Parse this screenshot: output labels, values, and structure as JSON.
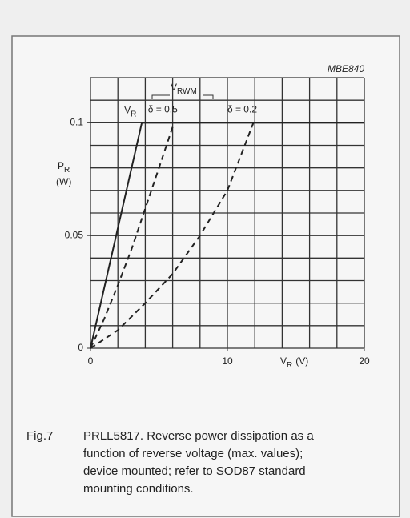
{
  "chart_data": {
    "type": "line",
    "code": "MBE840",
    "ylabel": {
      "text": "P",
      "sub": "R",
      "unit": "(W)"
    },
    "xlabel": {
      "text": "V",
      "sub": "R",
      "unit": "(V)"
    },
    "group_label": {
      "text": "V",
      "sub": "RWM"
    },
    "xlim": [
      0,
      20
    ],
    "xticks": [
      0,
      10,
      20
    ],
    "ylim": [
      0,
      0.12
    ],
    "yticks": [
      0,
      0.05,
      0.1
    ],
    "xgrid": [
      0,
      2,
      4,
      6,
      8,
      10,
      12,
      14,
      16,
      18,
      20
    ],
    "ygrid": [
      0,
      0.01,
      0.02,
      0.03,
      0.04,
      0.05,
      0.06,
      0.07,
      0.08,
      0.09,
      0.1,
      0.11,
      0.12
    ],
    "series": [
      {
        "label": {
          "text": "V",
          "sub": "R"
        },
        "style": "solid",
        "color": "#222222",
        "x": [
          0,
          3.75
        ],
        "values": [
          0,
          0.1
        ]
      },
      {
        "name": "δ = 0.5",
        "style": "dashed",
        "color": "#222222",
        "x": [
          0,
          1,
          2,
          3,
          4,
          5,
          6.1
        ],
        "values": [
          0,
          0.013,
          0.028,
          0.044,
          0.062,
          0.08,
          0.1
        ]
      },
      {
        "name": "δ = 0.2",
        "style": "dashed",
        "color": "#222222",
        "x": [
          0,
          2,
          4,
          6,
          8,
          10,
          11.9
        ],
        "values": [
          0,
          0.008,
          0.02,
          0.033,
          0.05,
          0.07,
          0.1
        ]
      },
      {
        "style": "solid",
        "color": "#222222",
        "x": [
          3.75,
          20
        ],
        "values": [
          0.1,
          0.1
        ]
      }
    ],
    "caption": {
      "number": "Fig.7",
      "lines": [
        "PRLL5817. Reverse power dissipation as a",
        "function of reverse voltage (max. values);",
        "device mounted; refer to SOD87 standard",
        "mounting conditions."
      ]
    }
  }
}
